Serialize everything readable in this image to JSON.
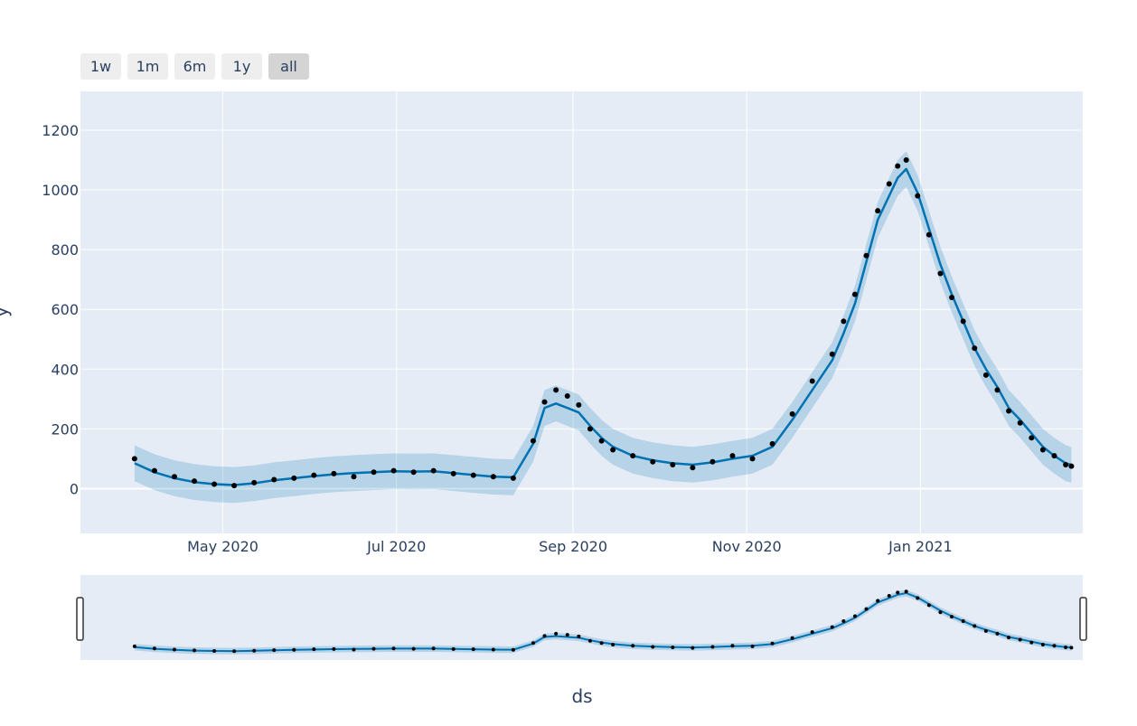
{
  "range_selector": {
    "buttons": [
      {
        "label": "1w",
        "active": false
      },
      {
        "label": "1m",
        "active": false
      },
      {
        "label": "6m",
        "active": false
      },
      {
        "label": "1y",
        "active": false
      },
      {
        "label": "all",
        "active": true
      }
    ]
  },
  "chart_data": {
    "type": "line",
    "title": "",
    "xlabel": "ds",
    "ylabel": "y",
    "x_range": [
      "2020-03-12",
      "2021-02-27"
    ],
    "ylim": [
      -150,
      1330
    ],
    "y_ticks": [
      0,
      200,
      400,
      600,
      800,
      1000,
      1200
    ],
    "x_ticks": [
      {
        "date": "2020-05-01",
        "label": "May 2020"
      },
      {
        "date": "2020-07-01",
        "label": "Jul 2020"
      },
      {
        "date": "2020-09-01",
        "label": "Sep 2020"
      },
      {
        "date": "2020-11-01",
        "label": "Nov 2020"
      },
      {
        "date": "2021-01-01",
        "label": "Jan 2021"
      }
    ],
    "grid": true,
    "legend": "none",
    "rangeslider": true,
    "colors": {
      "forecast": "#0072b2",
      "uncertainty": "rgba(0, 114, 178, 0.2)",
      "actual": "#000000",
      "plot_bg": "#e5ecf6",
      "grid": "#ffffff"
    },
    "series": [
      {
        "role": "actual",
        "x": [
          "2020-03-31",
          "2020-04-07",
          "2020-04-14",
          "2020-04-21",
          "2020-04-28",
          "2020-05-05",
          "2020-05-12",
          "2020-05-19",
          "2020-05-26",
          "2020-06-02",
          "2020-06-09",
          "2020-06-16",
          "2020-06-23",
          "2020-06-30",
          "2020-07-07",
          "2020-07-14",
          "2020-07-21",
          "2020-07-28",
          "2020-08-04",
          "2020-08-11",
          "2020-08-18",
          "2020-08-22",
          "2020-08-26",
          "2020-08-30",
          "2020-09-03",
          "2020-09-07",
          "2020-09-11",
          "2020-09-15",
          "2020-09-22",
          "2020-09-29",
          "2020-10-06",
          "2020-10-13",
          "2020-10-20",
          "2020-10-27",
          "2020-11-03",
          "2020-11-10",
          "2020-11-17",
          "2020-11-24",
          "2020-12-01",
          "2020-12-05",
          "2020-12-09",
          "2020-12-13",
          "2020-12-17",
          "2020-12-21",
          "2020-12-24",
          "2020-12-27",
          "2020-12-31",
          "2021-01-04",
          "2021-01-08",
          "2021-01-12",
          "2021-01-16",
          "2021-01-20",
          "2021-01-24",
          "2021-01-28",
          "2021-02-01",
          "2021-02-05",
          "2021-02-09",
          "2021-02-13",
          "2021-02-17",
          "2021-02-21",
          "2021-02-23"
        ],
        "y": [
          100,
          60,
          40,
          25,
          15,
          10,
          20,
          30,
          35,
          45,
          50,
          40,
          55,
          60,
          55,
          60,
          50,
          45,
          40,
          35,
          160,
          290,
          330,
          310,
          280,
          200,
          160,
          130,
          110,
          90,
          80,
          70,
          90,
          110,
          100,
          150,
          250,
          360,
          450,
          560,
          650,
          780,
          930,
          1020,
          1080,
          1100,
          980,
          850,
          720,
          640,
          560,
          470,
          380,
          330,
          260,
          220,
          170,
          130,
          110,
          80,
          75
        ]
      },
      {
        "role": "forecast",
        "x": [
          "2020-03-31",
          "2020-04-07",
          "2020-04-14",
          "2020-04-21",
          "2020-04-28",
          "2020-05-05",
          "2020-05-12",
          "2020-05-19",
          "2020-05-26",
          "2020-06-02",
          "2020-06-09",
          "2020-06-16",
          "2020-06-23",
          "2020-06-30",
          "2020-07-07",
          "2020-07-14",
          "2020-07-21",
          "2020-07-28",
          "2020-08-04",
          "2020-08-11",
          "2020-08-18",
          "2020-08-22",
          "2020-08-26",
          "2020-08-30",
          "2020-09-03",
          "2020-09-07",
          "2020-09-11",
          "2020-09-15",
          "2020-09-22",
          "2020-09-29",
          "2020-10-06",
          "2020-10-13",
          "2020-10-20",
          "2020-10-27",
          "2020-11-03",
          "2020-11-10",
          "2020-11-17",
          "2020-11-24",
          "2020-12-01",
          "2020-12-05",
          "2020-12-09",
          "2020-12-13",
          "2020-12-17",
          "2020-12-21",
          "2020-12-24",
          "2020-12-27",
          "2020-12-31",
          "2021-01-04",
          "2021-01-08",
          "2021-01-12",
          "2021-01-16",
          "2021-01-20",
          "2021-01-24",
          "2021-01-28",
          "2021-02-01",
          "2021-02-05",
          "2021-02-09",
          "2021-02-13",
          "2021-02-17",
          "2021-02-21",
          "2021-02-23"
        ],
        "y": [
          85,
          55,
          35,
          22,
          15,
          12,
          18,
          28,
          35,
          42,
          48,
          52,
          55,
          58,
          57,
          58,
          52,
          46,
          40,
          38,
          150,
          270,
          285,
          270,
          255,
          210,
          170,
          140,
          110,
          95,
          85,
          80,
          88,
          100,
          110,
          140,
          230,
          330,
          430,
          520,
          620,
          760,
          900,
          980,
          1040,
          1070,
          990,
          870,
          750,
          650,
          560,
          470,
          400,
          340,
          270,
          230,
          185,
          140,
          110,
          85,
          80
        ]
      }
    ],
    "uncertainty_band_halfwidth": 60
  }
}
